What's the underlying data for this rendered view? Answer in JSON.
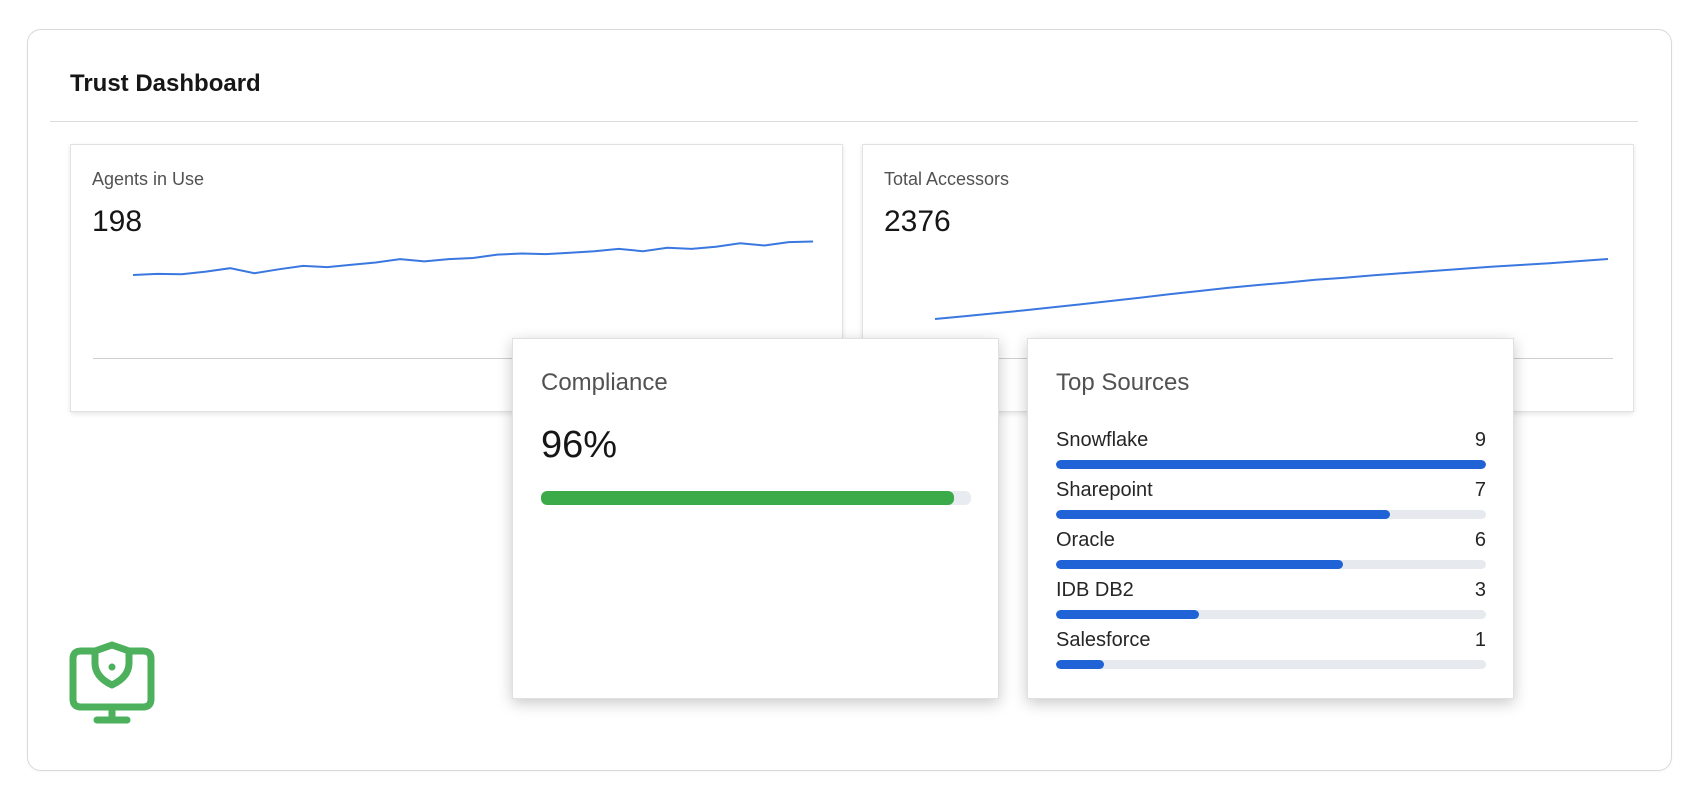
{
  "dashboard": {
    "title": "Trust Dashboard"
  },
  "agents_panel": {
    "label": "Agents in Use",
    "value": "198",
    "line_color": "#3a78e0"
  },
  "accessors_panel": {
    "label": "Total Accessors",
    "value": "2376",
    "line_color": "#3a78e0"
  },
  "compliance": {
    "label": "Compliance",
    "value": "96%",
    "progress": 0.96,
    "fill_color": "#3bab4a"
  },
  "top_sources": {
    "label": "Top Sources",
    "bar_color": "#1f63d6",
    "max": 9,
    "items": [
      {
        "name": "Snowflake",
        "count": 9
      },
      {
        "name": "Sharepoint",
        "count": 7
      },
      {
        "name": "Oracle",
        "count": 6
      },
      {
        "name": "IDB DB2",
        "count": 3
      },
      {
        "name": "Salesforce",
        "count": 1
      }
    ]
  },
  "logo": {
    "icon": "shield-monitor-icon",
    "color": "#4cb05c"
  },
  "chart_data": [
    {
      "type": "line",
      "series": [
        {
          "values": [
            18,
            18.5,
            18.3,
            19.5,
            21,
            18.8,
            20.5,
            22,
            21.5,
            22.5,
            23.5,
            25,
            24,
            25,
            25.5,
            27,
            27.5,
            27.2,
            27.8,
            28.5,
            29.5,
            28.5,
            30,
            29.5,
            30.5,
            32,
            31,
            32.5,
            32.8
          ]
        }
      ],
      "grid": false
    },
    {
      "type": "line",
      "series": [
        {
          "values": [
            0,
            4,
            8,
            12,
            16.5,
            21,
            25.5,
            30,
            35,
            39.5,
            44,
            48,
            51.5,
            55.5,
            58.5,
            62,
            65,
            68,
            71,
            74,
            76.5,
            79,
            82,
            85
          ]
        }
      ],
      "grid": false
    }
  ]
}
